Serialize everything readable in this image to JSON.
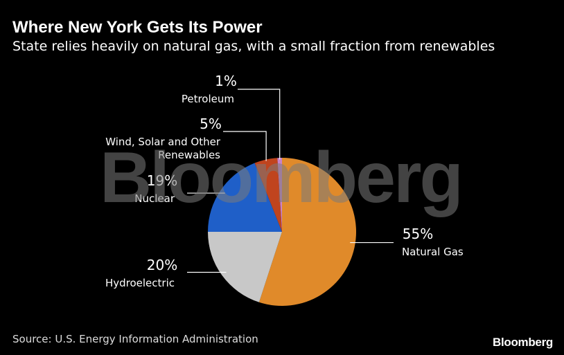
{
  "chart_data": {
    "type": "pie",
    "title": "Where New York Gets Its Power",
    "subtitle": "State relies heavily on natural gas, with a small fraction from renewables",
    "slices": [
      {
        "name": "Natural Gas",
        "value": 55,
        "display": "55%",
        "color": "#e08a2a"
      },
      {
        "name": "Hydroelectric",
        "value": 20,
        "display": "20%",
        "color": "#c8c8c8"
      },
      {
        "name": "Nuclear",
        "value": 19,
        "display": "19%",
        "color": "#1f5fc8"
      },
      {
        "name": "Wind, Solar and Other Renewables",
        "name_lines": [
          "Wind, Solar and Other",
          "Renewables"
        ],
        "value": 5,
        "display": "5%",
        "color": "#c0441e"
      },
      {
        "name": "Petroleum",
        "value": 1,
        "display": "1%",
        "color": "#c882c8"
      }
    ],
    "source": "Source: U.S. Energy Information Administration"
  },
  "watermark": "Bloomberg",
  "brand": "Bloomberg"
}
